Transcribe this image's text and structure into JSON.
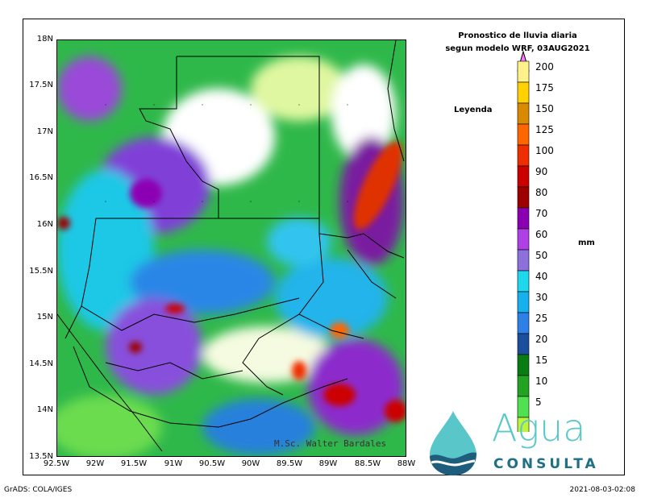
{
  "title_line1": "Pronostico de lluvia diaria",
  "title_line2": "segun modelo WRF,  03AUG2021",
  "legend_title": "Leyenda",
  "unit": "mm",
  "credit": "M.Sc. Walter Bardales",
  "footer_left": "GrADS: COLA/IGES",
  "footer_right": "2021-08-03-02:08",
  "brand": {
    "name": "Agua",
    "sub": "CONSULTA"
  },
  "y_ticks": [
    "18N",
    "17.5N",
    "17N",
    "16.5N",
    "16N",
    "15.5N",
    "15N",
    "14.5N",
    "14N",
    "13.5N"
  ],
  "x_ticks": [
    "92.5W",
    "92W",
    "91.5W",
    "91W",
    "90.5W",
    "90W",
    "89.5W",
    "89W",
    "88.5W",
    "88W"
  ],
  "colorbar": {
    "levels": [
      "200",
      "175",
      "150",
      "125",
      "100",
      "90",
      "80",
      "70",
      "60",
      "50",
      "40",
      "30",
      "25",
      "20",
      "15",
      "10",
      "5"
    ],
    "colors": [
      "#fa78fa",
      "#fff28a",
      "#ffd100",
      "#d88a00",
      "#ff6600",
      "#ef2e00",
      "#cc0000",
      "#9e0000",
      "#8c00b4",
      "#ae40e6",
      "#8c70dc",
      "#1ed8ee",
      "#16b0ec",
      "#2e80e6",
      "#1c4e9c",
      "#0a7c14",
      "#22a422",
      "#50e050",
      "#bcf53c"
    ]
  },
  "chart_data": {
    "type": "heatmap",
    "title": "Pronostico de lluvia diaria segun modelo WRF,  03AUG2021",
    "xlabel": "",
    "ylabel": "",
    "xlim": [
      -92.5,
      -88.0
    ],
    "ylim": [
      13.5,
      18.0
    ],
    "unit": "mm",
    "color_levels": [
      5,
      10,
      15,
      20,
      25,
      30,
      40,
      50,
      60,
      70,
      80,
      90,
      100,
      125,
      150,
      175,
      200
    ],
    "rain_maxima": [
      {
        "lon": -88.6,
        "lat": 16.6,
        "value": 100
      },
      {
        "lon": -88.8,
        "lat": 14.9,
        "value": 100
      },
      {
        "lon": -89.35,
        "lat": 14.45,
        "value": 90
      },
      {
        "lon": -88.7,
        "lat": 14.2,
        "value": 90
      },
      {
        "lon": -88.1,
        "lat": 14.0,
        "value": 90
      },
      {
        "lon": -91.05,
        "lat": 15.1,
        "value": 80
      },
      {
        "lon": -91.5,
        "lat": 14.7,
        "value": 70
      },
      {
        "lon": -92.45,
        "lat": 16.05,
        "value": 70
      }
    ]
  }
}
